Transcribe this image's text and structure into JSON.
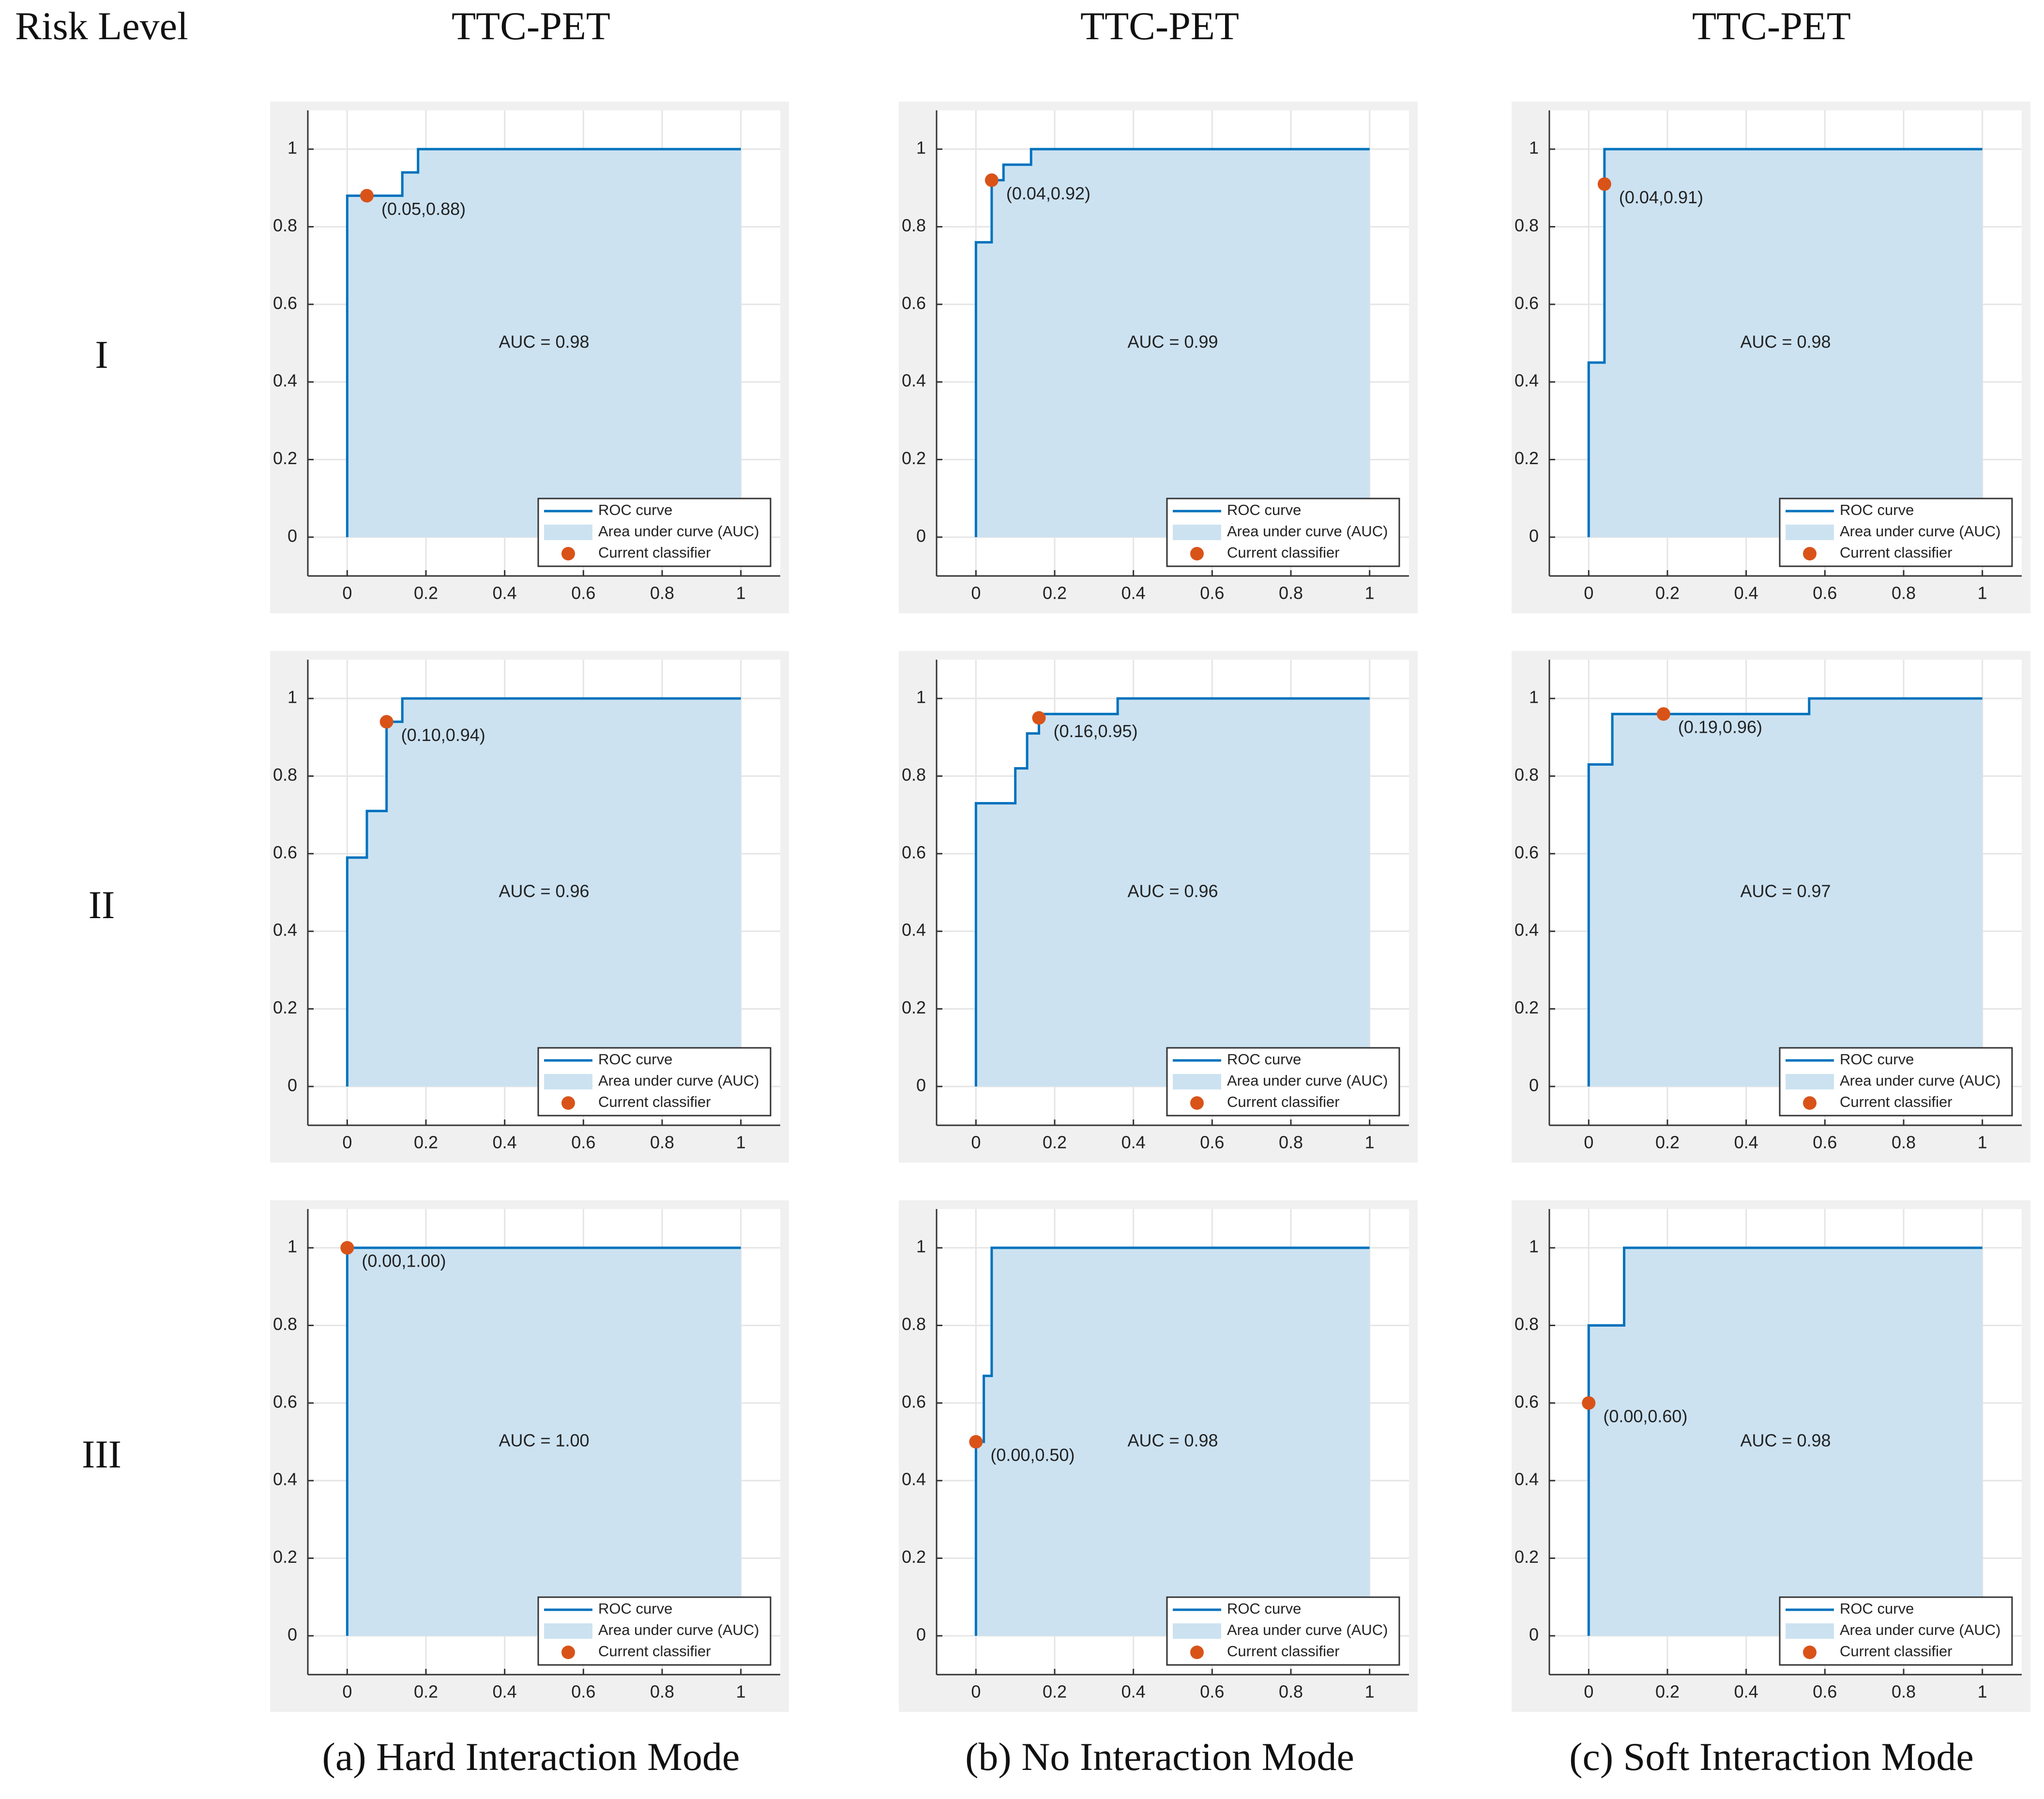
{
  "header": {
    "corner": "Risk Level",
    "columns": [
      "TTC-PET",
      "TTC-PET",
      "TTC-PET"
    ]
  },
  "rows": [
    "I",
    "II",
    "III"
  ],
  "captions": [
    "(a) Hard Interaction Mode",
    "(b) No Interaction Mode",
    "(c) Soft Interaction Mode"
  ],
  "chart_data": [
    {
      "type": "line",
      "annotation": "AUC = 0.98",
      "xlim": [
        -0.1,
        1.1
      ],
      "ylim": [
        -0.1,
        1.1
      ],
      "xticks": [
        0,
        0.2,
        0.4,
        0.6,
        0.8,
        1
      ],
      "yticks": [
        0,
        0.2,
        0.4,
        0.6,
        0.8,
        1
      ],
      "grid": true,
      "legend": "lower right",
      "series": [
        {
          "name": "ROC curve",
          "kind": "line",
          "color": "#0072bd",
          "x": [
            0,
            0,
            0.14,
            0.14,
            0.18,
            0.18,
            1
          ],
          "values": [
            0,
            0.88,
            0.88,
            0.94,
            0.94,
            1,
            1
          ]
        },
        {
          "name": "Area under curve (AUC)",
          "kind": "area",
          "color": "#cce2f1",
          "x": [
            0,
            0,
            0.14,
            0.14,
            0.18,
            0.18,
            1
          ],
          "values": [
            0,
            0.88,
            0.88,
            0.94,
            0.94,
            1,
            1
          ]
        },
        {
          "name": "Current classifier",
          "kind": "point",
          "color": "#d95319",
          "x": [
            0.05
          ],
          "values": [
            0.88
          ],
          "value_labels": [
            "(0.05,0.88)"
          ]
        }
      ]
    },
    {
      "type": "line",
      "annotation": "AUC = 0.99",
      "xlim": [
        -0.1,
        1.1
      ],
      "ylim": [
        -0.1,
        1.1
      ],
      "xticks": [
        0,
        0.2,
        0.4,
        0.6,
        0.8,
        1
      ],
      "yticks": [
        0,
        0.2,
        0.4,
        0.6,
        0.8,
        1
      ],
      "grid": true,
      "legend": "lower right",
      "series": [
        {
          "name": "ROC curve",
          "kind": "line",
          "color": "#0072bd",
          "x": [
            0,
            0,
            0.04,
            0.04,
            0.07,
            0.07,
            0.14,
            0.14,
            1
          ],
          "values": [
            0,
            0.76,
            0.76,
            0.92,
            0.92,
            0.96,
            0.96,
            1,
            1
          ]
        },
        {
          "name": "Area under curve (AUC)",
          "kind": "area",
          "color": "#cce2f1",
          "x": [
            0,
            0,
            0.04,
            0.04,
            0.07,
            0.07,
            0.14,
            0.14,
            1
          ],
          "values": [
            0,
            0.76,
            0.76,
            0.92,
            0.92,
            0.96,
            0.96,
            1,
            1
          ]
        },
        {
          "name": "Current classifier",
          "kind": "point",
          "color": "#d95319",
          "x": [
            0.04
          ],
          "values": [
            0.92
          ],
          "value_labels": [
            "(0.04,0.92)"
          ]
        }
      ]
    },
    {
      "type": "line",
      "annotation": "AUC = 0.98",
      "xlim": [
        -0.1,
        1.1
      ],
      "ylim": [
        -0.1,
        1.1
      ],
      "xticks": [
        0,
        0.2,
        0.4,
        0.6,
        0.8,
        1
      ],
      "yticks": [
        0,
        0.2,
        0.4,
        0.6,
        0.8,
        1
      ],
      "grid": true,
      "legend": "lower right",
      "series": [
        {
          "name": "ROC curve",
          "kind": "line",
          "color": "#0072bd",
          "x": [
            0,
            0,
            0.04,
            0.04,
            1
          ],
          "values": [
            0,
            0.45,
            0.45,
            1,
            1
          ]
        },
        {
          "name": "Area under curve (AUC)",
          "kind": "area",
          "color": "#cce2f1",
          "x": [
            0,
            0,
            0.04,
            0.04,
            1
          ],
          "values": [
            0,
            0.45,
            0.45,
            1,
            1
          ]
        },
        {
          "name": "Current classifier",
          "kind": "point",
          "color": "#d95319",
          "x": [
            0.04
          ],
          "values": [
            0.91
          ],
          "value_labels": [
            "(0.04,0.91)"
          ]
        }
      ]
    },
    {
      "type": "line",
      "annotation": "AUC = 0.96",
      "xlim": [
        -0.1,
        1.1
      ],
      "ylim": [
        -0.1,
        1.1
      ],
      "xticks": [
        0,
        0.2,
        0.4,
        0.6,
        0.8,
        1
      ],
      "yticks": [
        0,
        0.2,
        0.4,
        0.6,
        0.8,
        1
      ],
      "grid": true,
      "legend": "lower right",
      "series": [
        {
          "name": "ROC curve",
          "kind": "line",
          "color": "#0072bd",
          "x": [
            0,
            0,
            0.05,
            0.05,
            0.1,
            0.1,
            0.14,
            0.14,
            1
          ],
          "values": [
            0,
            0.59,
            0.59,
            0.71,
            0.71,
            0.94,
            0.94,
            1,
            1
          ]
        },
        {
          "name": "Area under curve (AUC)",
          "kind": "area",
          "color": "#cce2f1",
          "x": [
            0,
            0,
            0.05,
            0.05,
            0.1,
            0.1,
            0.14,
            0.14,
            1
          ],
          "values": [
            0,
            0.59,
            0.59,
            0.71,
            0.71,
            0.94,
            0.94,
            1,
            1
          ]
        },
        {
          "name": "Current classifier",
          "kind": "point",
          "color": "#d95319",
          "x": [
            0.1
          ],
          "values": [
            0.94
          ],
          "value_labels": [
            "(0.10,0.94)"
          ]
        }
      ]
    },
    {
      "type": "line",
      "annotation": "AUC = 0.96",
      "xlim": [
        -0.1,
        1.1
      ],
      "ylim": [
        -0.1,
        1.1
      ],
      "xticks": [
        0,
        0.2,
        0.4,
        0.6,
        0.8,
        1
      ],
      "yticks": [
        0,
        0.2,
        0.4,
        0.6,
        0.8,
        1
      ],
      "grid": true,
      "legend": "lower right",
      "series": [
        {
          "name": "ROC curve",
          "kind": "line",
          "color": "#0072bd",
          "x": [
            0,
            0,
            0.1,
            0.1,
            0.13,
            0.13,
            0.16,
            0.16,
            0.36,
            0.36,
            1
          ],
          "values": [
            0,
            0.73,
            0.73,
            0.82,
            0.82,
            0.91,
            0.91,
            0.96,
            0.96,
            1,
            1
          ]
        },
        {
          "name": "Area under curve (AUC)",
          "kind": "area",
          "color": "#cce2f1",
          "x": [
            0,
            0,
            0.1,
            0.1,
            0.13,
            0.13,
            0.16,
            0.16,
            0.36,
            0.36,
            1
          ],
          "values": [
            0,
            0.73,
            0.73,
            0.82,
            0.82,
            0.91,
            0.91,
            0.96,
            0.96,
            1,
            1
          ]
        },
        {
          "name": "Current classifier",
          "kind": "point",
          "color": "#d95319",
          "x": [
            0.16
          ],
          "values": [
            0.95
          ],
          "value_labels": [
            "(0.16,0.95)"
          ]
        }
      ]
    },
    {
      "type": "line",
      "annotation": "AUC = 0.97",
      "xlim": [
        -0.1,
        1.1
      ],
      "ylim": [
        -0.1,
        1.1
      ],
      "xticks": [
        0,
        0.2,
        0.4,
        0.6,
        0.8,
        1
      ],
      "yticks": [
        0,
        0.2,
        0.4,
        0.6,
        0.8,
        1
      ],
      "grid": true,
      "legend": "lower right",
      "series": [
        {
          "name": "ROC curve",
          "kind": "line",
          "color": "#0072bd",
          "x": [
            0,
            0,
            0.06,
            0.06,
            0.56,
            0.56,
            1
          ],
          "values": [
            0,
            0.83,
            0.83,
            0.96,
            0.96,
            1,
            1
          ]
        },
        {
          "name": "Area under curve (AUC)",
          "kind": "area",
          "color": "#cce2f1",
          "x": [
            0,
            0,
            0.06,
            0.06,
            0.56,
            0.56,
            1
          ],
          "values": [
            0,
            0.83,
            0.83,
            0.96,
            0.96,
            1,
            1
          ]
        },
        {
          "name": "Current classifier",
          "kind": "point",
          "color": "#d95319",
          "x": [
            0.19
          ],
          "values": [
            0.96
          ],
          "value_labels": [
            "(0.19,0.96)"
          ]
        }
      ]
    },
    {
      "type": "line",
      "annotation": "AUC = 1.00",
      "xlim": [
        -0.1,
        1.1
      ],
      "ylim": [
        -0.1,
        1.1
      ],
      "xticks": [
        0,
        0.2,
        0.4,
        0.6,
        0.8,
        1
      ],
      "yticks": [
        0,
        0.2,
        0.4,
        0.6,
        0.8,
        1
      ],
      "grid": true,
      "legend": "lower right",
      "series": [
        {
          "name": "ROC curve",
          "kind": "line",
          "color": "#0072bd",
          "x": [
            0,
            0,
            1
          ],
          "values": [
            0,
            1,
            1
          ]
        },
        {
          "name": "Area under curve (AUC)",
          "kind": "area",
          "color": "#cce2f1",
          "x": [
            0,
            0,
            1
          ],
          "values": [
            0,
            1,
            1
          ]
        },
        {
          "name": "Current classifier",
          "kind": "point",
          "color": "#d95319",
          "x": [
            0
          ],
          "values": [
            1
          ],
          "value_labels": [
            "(0.00,1.00)"
          ]
        }
      ]
    },
    {
      "type": "line",
      "annotation": "AUC = 0.98",
      "xlim": [
        -0.1,
        1.1
      ],
      "ylim": [
        -0.1,
        1.1
      ],
      "xticks": [
        0,
        0.2,
        0.4,
        0.6,
        0.8,
        1
      ],
      "yticks": [
        0,
        0.2,
        0.4,
        0.6,
        0.8,
        1
      ],
      "grid": true,
      "legend": "lower right",
      "series": [
        {
          "name": "ROC curve",
          "kind": "line",
          "color": "#0072bd",
          "x": [
            0,
            0,
            0.02,
            0.02,
            0.04,
            0.04,
            1
          ],
          "values": [
            0,
            0.5,
            0.5,
            0.67,
            0.67,
            1,
            1
          ]
        },
        {
          "name": "Area under curve (AUC)",
          "kind": "area",
          "color": "#cce2f1",
          "x": [
            0,
            0,
            0.02,
            0.02,
            0.04,
            0.04,
            1
          ],
          "values": [
            0,
            0.5,
            0.5,
            0.67,
            0.67,
            1,
            1
          ]
        },
        {
          "name": "Current classifier",
          "kind": "point",
          "color": "#d95319",
          "x": [
            0
          ],
          "values": [
            0.5
          ],
          "value_labels": [
            "(0.00,0.50)"
          ]
        }
      ]
    },
    {
      "type": "line",
      "annotation": "AUC = 0.98",
      "xlim": [
        -0.1,
        1.1
      ],
      "ylim": [
        -0.1,
        1.1
      ],
      "xticks": [
        0,
        0.2,
        0.4,
        0.6,
        0.8,
        1
      ],
      "yticks": [
        0,
        0.2,
        0.4,
        0.6,
        0.8,
        1
      ],
      "grid": true,
      "legend": "lower right",
      "series": [
        {
          "name": "ROC curve",
          "kind": "line",
          "color": "#0072bd",
          "x": [
            0,
            0,
            0.09,
            0.09,
            1
          ],
          "values": [
            0,
            0.8,
            0.8,
            1,
            1
          ]
        },
        {
          "name": "Area under curve (AUC)",
          "kind": "area",
          "color": "#cce2f1",
          "x": [
            0,
            0,
            0.09,
            0.09,
            1
          ],
          "values": [
            0,
            0.8,
            0.8,
            1,
            1
          ]
        },
        {
          "name": "Current classifier",
          "kind": "point",
          "color": "#d95319",
          "x": [
            0
          ],
          "values": [
            0.6
          ],
          "value_labels": [
            "(0.00,0.60)"
          ]
        }
      ]
    }
  ]
}
